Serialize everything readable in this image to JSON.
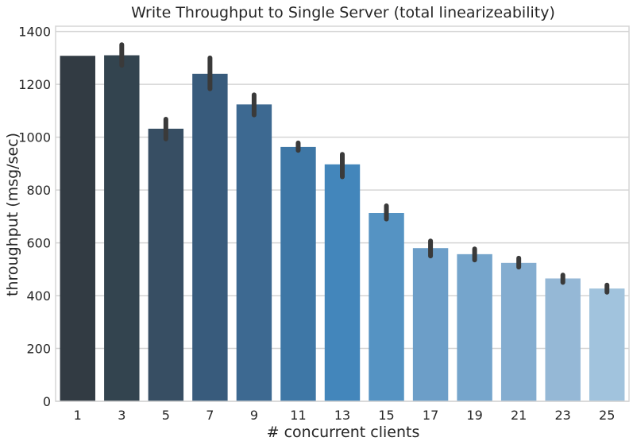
{
  "chart_data": {
    "type": "bar",
    "title": "Write Throughput to Single Server (total linearizeability)",
    "xlabel": "# concurrent clients",
    "ylabel": "throughput (msg/sec)",
    "categories": [
      "1",
      "3",
      "5",
      "7",
      "9",
      "11",
      "13",
      "15",
      "17",
      "19",
      "21",
      "23",
      "25"
    ],
    "values": [
      1308,
      1310,
      1032,
      1240,
      1124,
      963,
      897,
      713,
      580,
      557,
      524,
      465,
      427
    ],
    "error_low": [
      1308,
      1272,
      993,
      1183,
      1084,
      950,
      850,
      690,
      550,
      535,
      508,
      450,
      413
    ],
    "error_high": [
      1308,
      1350,
      1068,
      1300,
      1160,
      978,
      935,
      740,
      607,
      577,
      542,
      478,
      440
    ],
    "ylim": [
      0,
      1420
    ],
    "yticks": [
      0,
      200,
      400,
      600,
      800,
      1000,
      1200,
      1400
    ],
    "grid": true,
    "colors": [
      "#323b43",
      "#33444f",
      "#374e63",
      "#385b7c",
      "#3d6991",
      "#3e77a6",
      "#4386bb",
      "#5593c3",
      "#6c9ec8",
      "#75a5cc",
      "#84add0",
      "#95b8d6",
      "#a1c3dd"
    ],
    "error_color": "#3a3a3a",
    "grid_color": "#d5d5d5"
  }
}
